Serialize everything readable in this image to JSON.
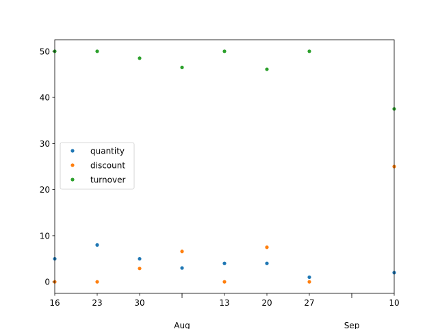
{
  "chart_data": {
    "type": "scatter",
    "x": [
      "2023-07-16",
      "2023-07-23",
      "2023-07-30",
      "2023-08-06",
      "2023-08-13",
      "2023-08-20",
      "2023-08-27",
      "2023-09-10"
    ],
    "series": [
      {
        "name": "quantity",
        "color": "#1f77b4",
        "values": [
          5,
          8,
          5,
          3,
          4,
          4,
          1,
          2
        ]
      },
      {
        "name": "discount",
        "color": "#ff7f0e",
        "values": [
          0,
          0,
          2.9,
          6.6,
          0,
          7.5,
          0,
          25
        ]
      },
      {
        "name": "turnover",
        "color": "#2ca02c",
        "values": [
          50,
          50,
          48.5,
          46.5,
          50,
          46.1,
          50,
          37.5
        ]
      }
    ],
    "xlim": [
      "2023-07-16",
      "2023-09-10"
    ],
    "ylim": [
      -2.5,
      52.5
    ],
    "x_minor_ticks": [
      {
        "date": "2023-07-16",
        "label": "16"
      },
      {
        "date": "2023-07-23",
        "label": "23"
      },
      {
        "date": "2023-07-30",
        "label": "30"
      },
      {
        "date": "2023-08-06",
        "label": ""
      },
      {
        "date": "2023-08-13",
        "label": "13"
      },
      {
        "date": "2023-08-20",
        "label": "20"
      },
      {
        "date": "2023-08-27",
        "label": "27"
      },
      {
        "date": "2023-09-03",
        "label": ""
      },
      {
        "date": "2023-09-10",
        "label": "10"
      }
    ],
    "x_major_ticks": [
      {
        "date": "2023-08-06",
        "label": "Aug"
      },
      {
        "date": "2023-09-03",
        "label": "Sep"
      }
    ],
    "y_ticks": [
      0,
      10,
      20,
      30,
      40,
      50
    ],
    "legend_position": "center-left",
    "grid": false
  }
}
